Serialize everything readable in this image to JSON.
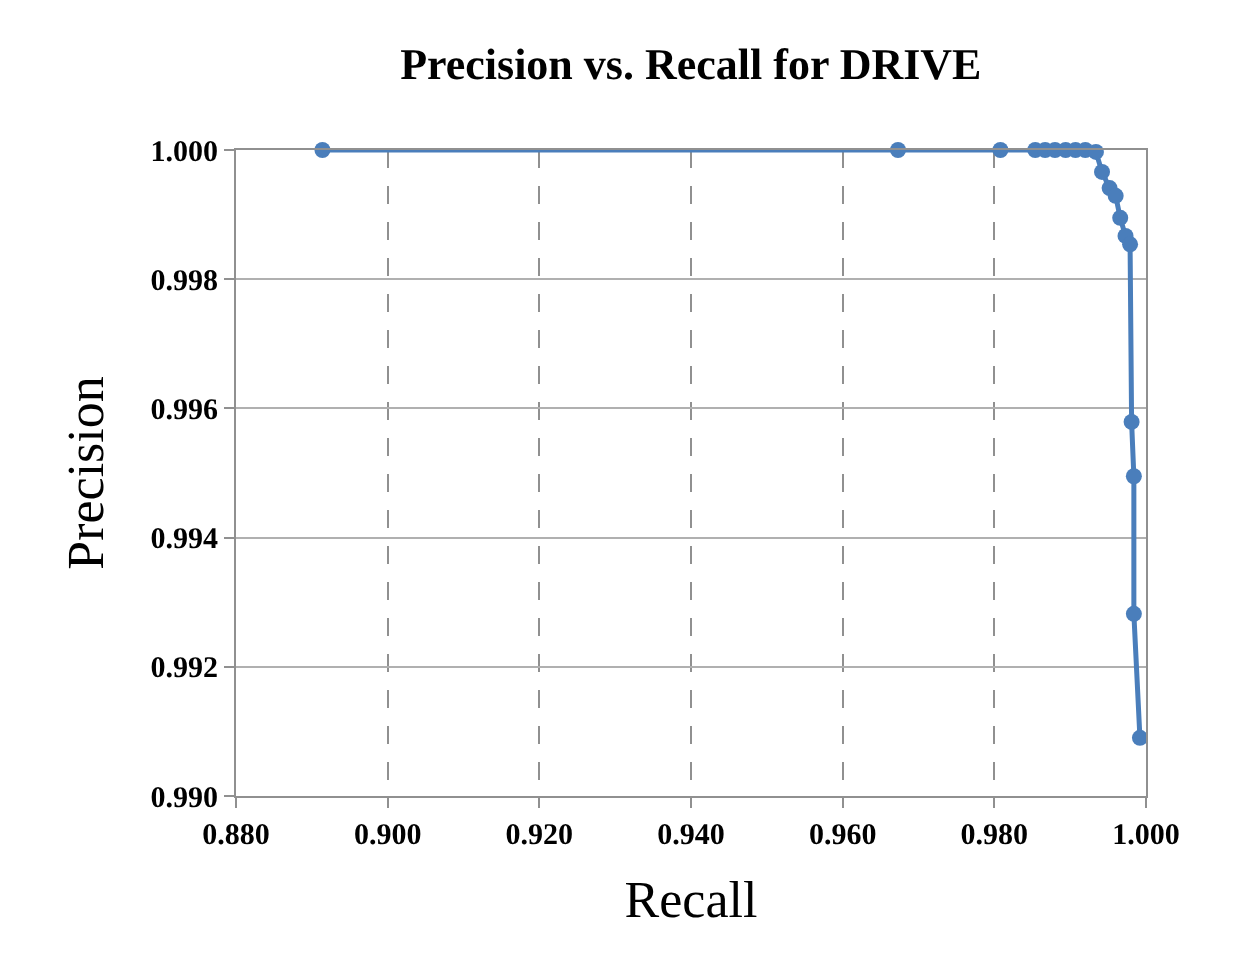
{
  "chart_data": {
    "type": "line",
    "title": "Precision vs. Recall for DRIVE",
    "xlabel": "Recall",
    "ylabel": "Precision",
    "x": [
      0.8914,
      0.9673,
      0.9808,
      0.9854,
      0.9867,
      0.988,
      0.9894,
      0.9907,
      0.992,
      0.9934,
      0.9942,
      0.9952,
      0.996,
      0.9966,
      0.9973,
      0.9979,
      0.9981,
      0.9984,
      0.9984,
      0.9992
    ],
    "series": [
      {
        "color": "#4a7ebb",
        "values": [
          1.0,
          1.0,
          1.0,
          1.0,
          1.0,
          1.0,
          1.0,
          1.0,
          1.0,
          0.99997,
          0.99966,
          0.99941,
          0.99929,
          0.99895,
          0.99867,
          0.99854,
          0.99579,
          0.99495,
          0.99282,
          0.9909
        ]
      }
    ],
    "xlim": [
      0.88,
      1.0
    ],
    "xticks": [
      {
        "value": 0.88,
        "label": "0.880"
      },
      {
        "value": 0.9,
        "label": "0.900"
      },
      {
        "value": 0.92,
        "label": "0.920"
      },
      {
        "value": 0.94,
        "label": "0.940"
      },
      {
        "value": 0.96,
        "label": "0.960"
      },
      {
        "value": 0.98,
        "label": "0.980"
      },
      {
        "value": 1.0,
        "label": "1.000"
      }
    ],
    "ylim": [
      0.99,
      1.0
    ],
    "yticks": [
      {
        "value": 0.99,
        "label": "0.990"
      },
      {
        "value": 0.992,
        "label": "0.992"
      },
      {
        "value": 0.994,
        "label": "0.994"
      },
      {
        "value": 0.996,
        "label": "0.996"
      },
      {
        "value": 0.998,
        "label": "0.998"
      },
      {
        "value": 1.0,
        "label": "1.000"
      }
    ],
    "grid": true,
    "marker": "circle",
    "line_style": "solid"
  }
}
